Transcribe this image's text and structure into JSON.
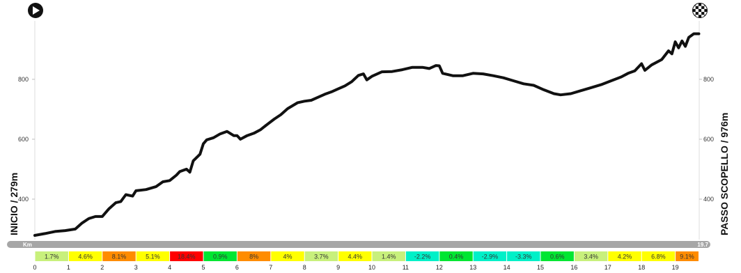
{
  "chart_data": {
    "type": "area",
    "start_label": "INICIO / 279m",
    "end_label": "PASSO SCOPELLO / 976m",
    "distance_unit": "Km",
    "total_distance_label": "19.7",
    "total_distance": 19.7,
    "y_ticks": [
      400,
      600,
      800
    ],
    "ylim": [
      265,
      995
    ],
    "x_ticks": [
      0,
      1,
      2,
      3,
      4,
      5,
      6,
      7,
      8,
      9,
      10,
      11,
      12,
      13,
      14,
      15,
      16,
      17,
      18,
      19
    ],
    "elevation_profile": [
      [
        0.0,
        279
      ],
      [
        0.3,
        285
      ],
      [
        0.6,
        292
      ],
      [
        0.9,
        295
      ],
      [
        1.2,
        300
      ],
      [
        1.4,
        320
      ],
      [
        1.6,
        335
      ],
      [
        1.8,
        342
      ],
      [
        2.0,
        342
      ],
      [
        2.2,
        368
      ],
      [
        2.4,
        388
      ],
      [
        2.55,
        392
      ],
      [
        2.7,
        415
      ],
      [
        2.9,
        410
      ],
      [
        3.0,
        428
      ],
      [
        3.3,
        432
      ],
      [
        3.6,
        442
      ],
      [
        3.8,
        458
      ],
      [
        4.0,
        462
      ],
      [
        4.2,
        480
      ],
      [
        4.3,
        492
      ],
      [
        4.5,
        500
      ],
      [
        4.6,
        490
      ],
      [
        4.7,
        528
      ],
      [
        4.9,
        550
      ],
      [
        5.0,
        585
      ],
      [
        5.1,
        598
      ],
      [
        5.3,
        605
      ],
      [
        5.5,
        618
      ],
      [
        5.7,
        626
      ],
      [
        5.9,
        612
      ],
      [
        6.0,
        612
      ],
      [
        6.1,
        600
      ],
      [
        6.3,
        612
      ],
      [
        6.5,
        620
      ],
      [
        6.7,
        632
      ],
      [
        6.9,
        650
      ],
      [
        7.1,
        667
      ],
      [
        7.3,
        682
      ],
      [
        7.5,
        702
      ],
      [
        7.8,
        722
      ],
      [
        8.0,
        727
      ],
      [
        8.2,
        730
      ],
      [
        8.4,
        740
      ],
      [
        8.6,
        750
      ],
      [
        8.8,
        758
      ],
      [
        9.0,
        768
      ],
      [
        9.2,
        778
      ],
      [
        9.4,
        792
      ],
      [
        9.6,
        813
      ],
      [
        9.75,
        818
      ],
      [
        9.85,
        798
      ],
      [
        10.0,
        810
      ],
      [
        10.3,
        825
      ],
      [
        10.6,
        826
      ],
      [
        10.9,
        832
      ],
      [
        11.2,
        840
      ],
      [
        11.5,
        840
      ],
      [
        11.7,
        836
      ],
      [
        11.9,
        846
      ],
      [
        12.0,
        845
      ],
      [
        12.1,
        820
      ],
      [
        12.4,
        812
      ],
      [
        12.7,
        812
      ],
      [
        13.0,
        820
      ],
      [
        13.3,
        818
      ],
      [
        13.6,
        812
      ],
      [
        13.9,
        805
      ],
      [
        14.2,
        795
      ],
      [
        14.5,
        785
      ],
      [
        14.8,
        780
      ],
      [
        15.1,
        765
      ],
      [
        15.4,
        752
      ],
      [
        15.6,
        748
      ],
      [
        15.9,
        752
      ],
      [
        16.2,
        762
      ],
      [
        16.5,
        772
      ],
      [
        16.8,
        782
      ],
      [
        17.1,
        795
      ],
      [
        17.4,
        808
      ],
      [
        17.6,
        820
      ],
      [
        17.8,
        828
      ],
      [
        18.0,
        852
      ],
      [
        18.1,
        830
      ],
      [
        18.3,
        848
      ],
      [
        18.6,
        866
      ],
      [
        18.8,
        895
      ],
      [
        18.9,
        885
      ],
      [
        19.0,
        925
      ],
      [
        19.1,
        905
      ],
      [
        19.2,
        928
      ],
      [
        19.3,
        910
      ],
      [
        19.4,
        940
      ],
      [
        19.55,
        952
      ],
      [
        19.7,
        952
      ]
    ],
    "segments": [
      {
        "label": "1.7%",
        "color": "#c8f07c"
      },
      {
        "label": "4.6%",
        "color": "#ffff00"
      },
      {
        "label": "8.1%",
        "color": "#ff8c00"
      },
      {
        "label": "5.1%",
        "color": "#ffff00"
      },
      {
        "label": "18.4%",
        "color": "#ff0000"
      },
      {
        "label": "0.9%",
        "color": "#00e632"
      },
      {
        "label": "8%",
        "color": "#ff8c00"
      },
      {
        "label": "4%",
        "color": "#ffff00"
      },
      {
        "label": "3.7%",
        "color": "#c8f07c"
      },
      {
        "label": "4.4%",
        "color": "#ffff00"
      },
      {
        "label": "1.4%",
        "color": "#c8f07c"
      },
      {
        "label": "-2.2%",
        "color": "#00f0c8"
      },
      {
        "label": "0.4%",
        "color": "#00e632"
      },
      {
        "label": "-2.9%",
        "color": "#00f0c8"
      },
      {
        "label": "-3.3%",
        "color": "#00f0c8"
      },
      {
        "label": "0.6%",
        "color": "#00e632"
      },
      {
        "label": "3.4%",
        "color": "#c8f07c"
      },
      {
        "label": "4.2%",
        "color": "#ffff00"
      },
      {
        "label": "6.8%",
        "color": "#ffff00"
      },
      {
        "label": "9.1%",
        "color": "#ff8c00"
      }
    ],
    "start_icon": "play-icon",
    "finish_icon": "checkered-flag-icon"
  }
}
